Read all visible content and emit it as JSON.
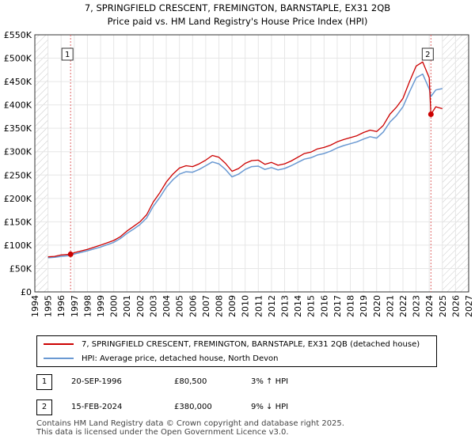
{
  "chart_data": {
    "type": "line",
    "title": "7, SPRINGFIELD CRESCENT, FREMINGTON, BARNSTAPLE, EX31 2QB",
    "subtitle": "Price paid vs. HM Land Registry's House Price Index (HPI)",
    "xlabel": "",
    "ylabel": "",
    "xlim": [
      1994,
      2027
    ],
    "ylim": [
      0,
      550000
    ],
    "x_ticks": [
      1994,
      1995,
      1996,
      1997,
      1998,
      1999,
      2000,
      2001,
      2002,
      2003,
      2004,
      2005,
      2006,
      2007,
      2008,
      2009,
      2010,
      2011,
      2012,
      2013,
      2014,
      2015,
      2016,
      2017,
      2018,
      2019,
      2020,
      2021,
      2022,
      2023,
      2024,
      2025,
      2026,
      2027
    ],
    "y_ticks": [
      {
        "value": 0,
        "label": "£0"
      },
      {
        "value": 50000,
        "label": "£50K"
      },
      {
        "value": 100000,
        "label": "£100K"
      },
      {
        "value": 150000,
        "label": "£150K"
      },
      {
        "value": 200000,
        "label": "£200K"
      },
      {
        "value": 250000,
        "label": "£250K"
      },
      {
        "value": 300000,
        "label": "£300K"
      },
      {
        "value": 350000,
        "label": "£350K"
      },
      {
        "value": 400000,
        "label": "£400K"
      },
      {
        "value": 450000,
        "label": "£450K"
      },
      {
        "value": 500000,
        "label": "£500K"
      },
      {
        "value": 550000,
        "label": "£550K"
      }
    ],
    "hatched_before": 1995.0,
    "hatched_after": 2025.0,
    "grid": true,
    "legend_position": "below",
    "series": [
      {
        "name": "7, SPRINGFIELD CRESCENT, FREMINGTON, BARNSTAPLE, EX31 2QB (detached house)",
        "color": "#cc0000",
        "x": [
          1995.0,
          1995.5,
          1996.0,
          1996.72,
          1997.0,
          1998.0,
          1999.0,
          2000.0,
          2000.5,
          2001.0,
          2001.5,
          2002.0,
          2002.5,
          2003.0,
          2003.5,
          2004.0,
          2004.5,
          2005.0,
          2005.5,
          2006.0,
          2006.5,
          2007.0,
          2007.5,
          2008.0,
          2008.5,
          2009.0,
          2009.5,
          2010.0,
          2010.5,
          2011.0,
          2011.5,
          2012.0,
          2012.5,
          2013.0,
          2013.5,
          2014.0,
          2014.5,
          2015.0,
          2015.5,
          2016.0,
          2016.5,
          2017.0,
          2017.5,
          2018.0,
          2018.5,
          2019.0,
          2019.5,
          2020.0,
          2020.5,
          2021.0,
          2021.5,
          2022.0,
          2022.5,
          2023.0,
          2023.5,
          2024.0,
          2024.13,
          2024.5,
          2025.0
        ],
        "values": [
          75000,
          76000,
          79000,
          80500,
          84000,
          91000,
          100000,
          110000,
          118000,
          130000,
          140000,
          150000,
          165000,
          192000,
          212000,
          235000,
          252000,
          265000,
          270000,
          268000,
          274000,
          282000,
          292000,
          288000,
          275000,
          258000,
          264000,
          275000,
          281000,
          282000,
          273000,
          277000,
          271000,
          274000,
          280000,
          288000,
          296000,
          299000,
          306000,
          309000,
          314000,
          321000,
          326000,
          330000,
          334000,
          341000,
          346000,
          343000,
          356000,
          380000,
          395000,
          414000,
          450000,
          483000,
          492000,
          458000,
          380000,
          396000,
          392000
        ]
      },
      {
        "name": "HPI: Average price, detached house, North Devon",
        "color": "#6a99d2",
        "x": [
          1995.0,
          1995.5,
          1996.0,
          1996.72,
          1997.0,
          1998.0,
          1999.0,
          2000.0,
          2000.5,
          2001.0,
          2001.5,
          2002.0,
          2002.5,
          2003.0,
          2003.5,
          2004.0,
          2004.5,
          2005.0,
          2005.5,
          2006.0,
          2006.5,
          2007.0,
          2007.5,
          2008.0,
          2008.5,
          2009.0,
          2009.5,
          2010.0,
          2010.5,
          2011.0,
          2011.5,
          2012.0,
          2012.5,
          2013.0,
          2013.5,
          2014.0,
          2014.5,
          2015.0,
          2015.5,
          2016.0,
          2016.5,
          2017.0,
          2017.5,
          2018.0,
          2018.5,
          2019.0,
          2019.5,
          2020.0,
          2020.5,
          2021.0,
          2021.5,
          2022.0,
          2022.5,
          2023.0,
          2023.5,
          2024.0,
          2024.13,
          2024.5,
          2025.0
        ],
        "values": [
          73000,
          74000,
          76000,
          78000,
          81000,
          88000,
          96000,
          106000,
          114000,
          125000,
          134000,
          144000,
          158000,
          183000,
          202000,
          224000,
          240000,
          252000,
          257000,
          256000,
          262000,
          270000,
          278000,
          274000,
          262000,
          246000,
          252000,
          262000,
          268000,
          269000,
          262000,
          266000,
          261000,
          264000,
          270000,
          277000,
          284000,
          287000,
          293000,
          296000,
          301000,
          308000,
          313000,
          317000,
          321000,
          327000,
          332000,
          329000,
          342000,
          363000,
          377000,
          396000,
          428000,
          458000,
          466000,
          434000,
          418000,
          432000,
          435000
        ]
      }
    ],
    "sales": [
      {
        "label": "1",
        "x": 1996.72,
        "y": 80500
      },
      {
        "label": "2",
        "x": 2024.13,
        "y": 380000
      }
    ]
  },
  "legend": {
    "items": [
      {
        "label": "7, SPRINGFIELD CRESCENT, FREMINGTON, BARNSTAPLE, EX31 2QB (detached house)",
        "color": "#cc0000"
      },
      {
        "label": "HPI: Average price, detached house, North Devon",
        "color": "#6a99d2"
      }
    ]
  },
  "sales_table": [
    {
      "num": "1",
      "date": "20-SEP-1996",
      "price": "£80,500",
      "hpi": "3% ↑ HPI"
    },
    {
      "num": "2",
      "date": "15-FEB-2024",
      "price": "£380,000",
      "hpi": "9% ↓ HPI"
    }
  ],
  "footer": {
    "line1": "Contains HM Land Registry data © Crown copyright and database right 2025.",
    "line2": "This data is licensed under the Open Government Licence v3.0."
  }
}
